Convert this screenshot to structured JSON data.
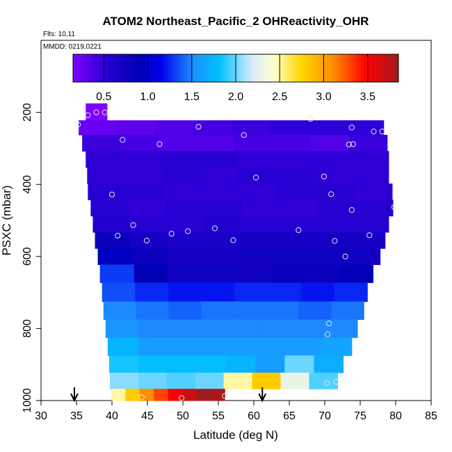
{
  "chart_data": {
    "type": "heatmap",
    "title": "ATOM2 Northeast_Pacific_2 OHReactivity_OHR",
    "flights_label": "Flts: 10,11",
    "mmdd_label": "MMDD: 0219,0221",
    "xlabel": "Latitude (deg N)",
    "ylabel": "PSXC (mbar)",
    "xlim": [
      30,
      85
    ],
    "ylim": [
      1000,
      0
    ],
    "x_ticks": [
      "30",
      "35",
      "40",
      "45",
      "50",
      "55",
      "60",
      "65",
      "70",
      "75",
      "80",
      "85"
    ],
    "y_ticks": [
      "200",
      "400",
      "600",
      "800",
      "1000"
    ],
    "colorbar": {
      "range": [
        0.15,
        3.85
      ],
      "ticks": [
        "0.5",
        "1.0",
        "1.5",
        "2.0",
        "2.5",
        "3.0",
        "3.5"
      ],
      "tick_values": [
        0.5,
        1.0,
        1.5,
        2.0,
        2.5,
        3.0,
        3.5
      ]
    },
    "arrows_latitude": [
      34.7,
      61.2
    ],
    "rows": [
      {
        "p": 200,
        "lat_min": 36.3,
        "lat_max": 39.3,
        "ohr": [
          0.15
        ]
      },
      {
        "p": 240,
        "lat_min": 35.3,
        "lat_max": 78.3,
        "ohr": [
          0.25,
          0.3,
          0.35,
          0.4,
          0.45,
          0.5,
          0.5,
          0.5
        ]
      },
      {
        "p": 285,
        "lat_min": 35.8,
        "lat_max": 78.8,
        "ohr": [
          0.45,
          0.4,
          0.35,
          0.35,
          0.4,
          0.4,
          0.35,
          0.45
        ]
      },
      {
        "p": 330,
        "lat_min": 36.3,
        "lat_max": 79.0,
        "ohr": [
          0.5,
          0.5,
          0.55,
          0.55,
          0.5,
          0.5,
          0.5,
          0.5
        ]
      },
      {
        "p": 375,
        "lat_min": 36.5,
        "lat_max": 79.0,
        "ohr": [
          0.5,
          0.5,
          0.55,
          0.5,
          0.55,
          0.55,
          0.5,
          0.5
        ]
      },
      {
        "p": 420,
        "lat_min": 36.6,
        "lat_max": 79.5,
        "ohr": [
          0.55,
          0.55,
          0.5,
          0.5,
          0.5,
          0.55,
          0.55,
          0.5
        ]
      },
      {
        "p": 465,
        "lat_min": 37.0,
        "lat_max": 79.6,
        "ohr": [
          0.55,
          0.5,
          0.55,
          0.55,
          0.5,
          0.5,
          0.55,
          0.55
        ]
      },
      {
        "p": 510,
        "lat_min": 37.3,
        "lat_max": 79.0,
        "ohr": [
          0.6,
          0.55,
          0.55,
          0.6,
          0.55,
          0.55,
          0.55,
          0.55
        ]
      },
      {
        "p": 555,
        "lat_min": 37.6,
        "lat_max": 78.5,
        "ohr": [
          0.8,
          0.7,
          0.65,
          0.65,
          0.7,
          0.7,
          0.7,
          0.7
        ]
      },
      {
        "p": 600,
        "lat_min": 38.0,
        "lat_max": 77.8,
        "ohr": [
          0.95,
          0.8,
          0.7,
          0.7,
          0.75,
          0.75,
          0.75,
          0.75
        ]
      },
      {
        "p": 645,
        "lat_min": 38.3,
        "lat_max": 76.8,
        "ohr": [
          1.3,
          0.9,
          0.75,
          0.75,
          0.75,
          0.8,
          0.8,
          0.85
        ]
      },
      {
        "p": 700,
        "lat_min": 38.6,
        "lat_max": 76.0,
        "ohr": [
          1.35,
          1.25,
          1.2,
          1.2,
          1.25,
          1.25,
          1.2,
          1.25
        ]
      },
      {
        "p": 750,
        "lat_min": 38.8,
        "lat_max": 75.5,
        "ohr": [
          1.5,
          1.45,
          1.4,
          1.45,
          1.45,
          1.45,
          1.4,
          1.45
        ]
      },
      {
        "p": 800,
        "lat_min": 39.1,
        "lat_max": 74.6,
        "ohr": [
          1.55,
          1.5,
          1.5,
          1.5,
          1.5,
          1.5,
          1.5,
          1.5
        ]
      },
      {
        "p": 850,
        "lat_min": 39.4,
        "lat_max": 73.8,
        "ohr": [
          1.75,
          1.6,
          1.6,
          1.6,
          1.6,
          1.6,
          1.6,
          1.65
        ]
      },
      {
        "p": 900,
        "lat_min": 39.6,
        "lat_max": 72.6,
        "ohr": [
          1.85,
          1.8,
          1.8,
          1.8,
          1.75,
          1.6,
          2.0,
          1.7
        ]
      },
      {
        "p": 945,
        "lat_min": 39.7,
        "lat_max": 71.8,
        "ohr": [
          2.05,
          2.0,
          1.95,
          2.0,
          2.5,
          2.8,
          2.3,
          1.95
        ]
      },
      {
        "p": 990,
        "lat_min": 39.9,
        "lat_max": 55.9,
        "ohr": [
          2.5,
          2.8,
          3.1,
          3.3,
          3.5,
          3.7,
          3.85,
          3.8
        ]
      }
    ],
    "samples": [
      [
        35.2,
        234
      ],
      [
        36.6,
        208
      ],
      [
        37.8,
        200
      ],
      [
        39.0,
        200
      ],
      [
        41.5,
        276
      ],
      [
        46.7,
        288
      ],
      [
        52.2,
        240
      ],
      [
        58.6,
        263
      ],
      [
        68.0,
        218
      ],
      [
        73.4,
        289
      ],
      [
        73.8,
        242
      ],
      [
        74.0,
        288
      ],
      [
        76.9,
        253
      ],
      [
        78.1,
        253
      ],
      [
        40.0,
        428
      ],
      [
        60.3,
        381
      ],
      [
        69.9,
        378
      ],
      [
        70.9,
        427
      ],
      [
        73.8,
        471
      ],
      [
        79.8,
        463
      ],
      [
        40.8,
        542
      ],
      [
        43.0,
        513
      ],
      [
        44.9,
        556
      ],
      [
        48.4,
        537
      ],
      [
        50.7,
        530
      ],
      [
        54.5,
        522
      ],
      [
        57.1,
        555
      ],
      [
        66.3,
        527
      ],
      [
        71.4,
        557
      ],
      [
        76.3,
        541
      ],
      [
        72.9,
        600
      ],
      [
        70.6,
        786
      ],
      [
        70.4,
        816
      ],
      [
        71.6,
        948
      ],
      [
        72.3,
        940
      ],
      [
        70.3,
        952
      ],
      [
        44.2,
        991
      ],
      [
        49.8,
        993
      ],
      [
        55.9,
        987
      ]
    ]
  }
}
